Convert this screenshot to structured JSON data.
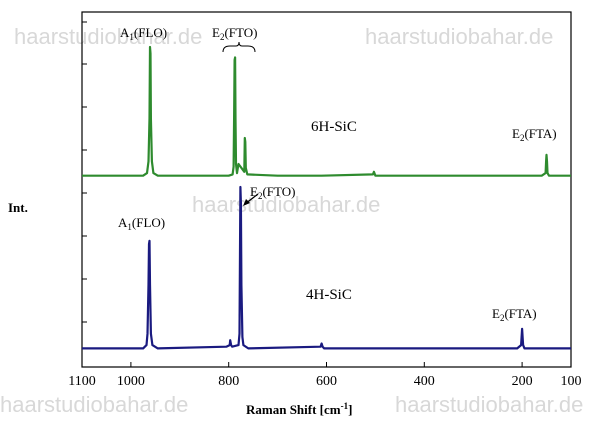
{
  "chart_data": {
    "type": "line",
    "xlabel": "Raman Shift [cm",
    "xlabel_sup": "-1",
    "xlabel_end": "]",
    "ylabel": "Int.",
    "x_ticks": [
      1100,
      1000,
      800,
      600,
      400,
      200,
      100
    ],
    "xlim": [
      1100,
      100
    ],
    "x_reversed": true,
    "grid": false,
    "series": [
      {
        "name": "6H-SiC",
        "color": "#2e8b2e",
        "points": [
          [
            1100,
            0.01
          ],
          [
            1000,
            0.01
          ],
          [
            975,
            0.01
          ],
          [
            967,
            0.03
          ],
          [
            964,
            0.12
          ],
          [
            962,
            0.45
          ],
          [
            961,
            1.0
          ],
          [
            960,
            0.95
          ],
          [
            959,
            0.45
          ],
          [
            957,
            0.12
          ],
          [
            954,
            0.03
          ],
          [
            945,
            0.01
          ],
          [
            800,
            0.01
          ],
          [
            792,
            0.02
          ],
          [
            790,
            0.08
          ],
          [
            789,
            0.45
          ],
          [
            788,
            0.9
          ],
          [
            787,
            0.92
          ],
          [
            786,
            0.45
          ],
          [
            785,
            0.1
          ],
          [
            783,
            0.03
          ],
          [
            780,
            0.1
          ],
          [
            768,
            0.04
          ],
          [
            767,
            0.3
          ],
          [
            766,
            0.27
          ],
          [
            765,
            0.07
          ],
          [
            762,
            0.02
          ],
          [
            700,
            0.01
          ],
          [
            610,
            0.01
          ],
          [
            505,
            0.02
          ],
          [
            503,
            0.04
          ],
          [
            501,
            0.02
          ],
          [
            500,
            0.01
          ],
          [
            160,
            0.01
          ],
          [
            152,
            0.03
          ],
          [
            151,
            0.12
          ],
          [
            150,
            0.17
          ],
          [
            149,
            0.12
          ],
          [
            148,
            0.03
          ],
          [
            145,
            0.01
          ],
          [
            100,
            0.01
          ]
        ],
        "annotations": [
          {
            "text": "A",
            "sub": "1",
            "rest": "(FLO)",
            "x": 961
          },
          {
            "text": "E",
            "sub": "2",
            "rest": "(FTO)",
            "x": 770
          },
          {
            "text": "E",
            "sub": "2",
            "rest": "(FTA)",
            "x": 150
          }
        ]
      },
      {
        "name": "4H-SiC",
        "color": "#1a1a80",
        "points": [
          [
            1100,
            0.01
          ],
          [
            1000,
            0.01
          ],
          [
            975,
            0.01
          ],
          [
            968,
            0.03
          ],
          [
            966,
            0.1
          ],
          [
            964,
            0.4
          ],
          [
            963,
            0.65
          ],
          [
            962,
            0.67
          ],
          [
            961,
            0.4
          ],
          [
            959,
            0.1
          ],
          [
            956,
            0.03
          ],
          [
            945,
            0.01
          ],
          [
            805,
            0.02
          ],
          [
            798,
            0.03
          ],
          [
            797,
            0.06
          ],
          [
            795,
            0.03
          ],
          [
            793,
            0.02
          ],
          [
            780,
            0.03
          ],
          [
            778,
            0.1
          ],
          [
            777,
            0.5
          ],
          [
            776,
            1.0
          ],
          [
            775,
            0.9
          ],
          [
            774,
            0.4
          ],
          [
            772,
            0.08
          ],
          [
            770,
            0.03
          ],
          [
            760,
            0.01
          ],
          [
            612,
            0.02
          ],
          [
            610,
            0.04
          ],
          [
            608,
            0.02
          ],
          [
            605,
            0.01
          ],
          [
            210,
            0.01
          ],
          [
            202,
            0.03
          ],
          [
            201,
            0.08
          ],
          [
            200,
            0.13
          ],
          [
            199,
            0.08
          ],
          [
            198,
            0.03
          ],
          [
            195,
            0.01
          ],
          [
            100,
            0.01
          ]
        ],
        "annotations": [
          {
            "text": "A",
            "sub": "1",
            "rest": "(FLO)",
            "x": 962
          },
          {
            "text": "E",
            "sub": "2",
            "rest": "(FTO)",
            "x": 776
          },
          {
            "text": "E",
            "sub": "2",
            "rest": "(FTA)",
            "x": 200
          }
        ]
      }
    ]
  },
  "watermark": "haarstudiobahar.de"
}
